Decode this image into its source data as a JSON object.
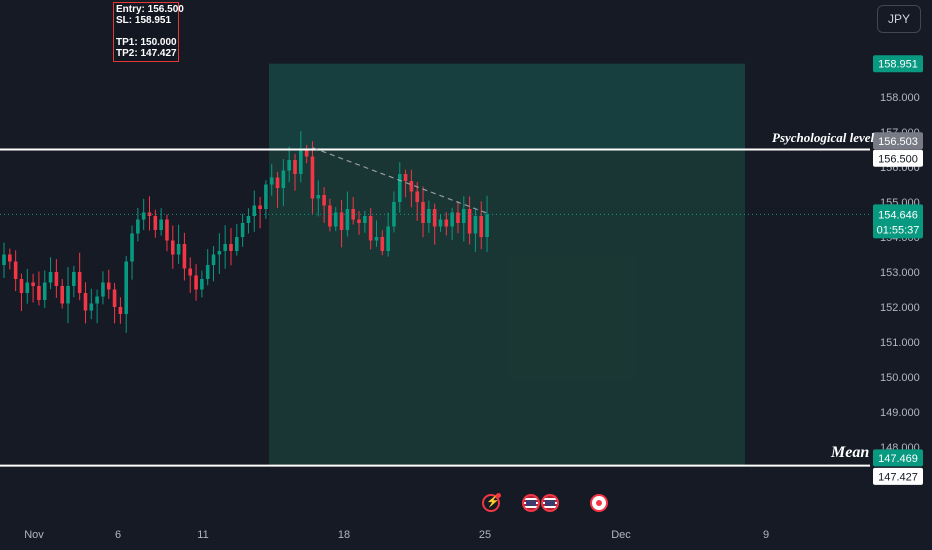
{
  "currency_button": "JPY",
  "note": {
    "entry": "Entry: 156.500",
    "sl": "SL: 158.951",
    "tp1": "TP1: 150.000",
    "tp2": "TP2: 147.427"
  },
  "labels": {
    "psychological": "Psychological level",
    "mean": "Mean"
  },
  "price_badges": {
    "sl": "158.951",
    "alt_high": "156.503",
    "entry": "156.500",
    "current": "154.646",
    "countdown": "01:55:37",
    "alt_low": "147.469",
    "tp2": "147.427"
  },
  "colors": {
    "background": "#161a25",
    "up": "#089981",
    "down": "#f23645",
    "zone": "#26a69a",
    "accent_green": "#089981"
  },
  "chart_data": {
    "type": "candlestick",
    "y_ticks": [
      "158.000",
      "157.000",
      "156.000",
      "155.000",
      "154.000",
      "153.000",
      "152.000",
      "151.000",
      "150.000",
      "149.000",
      "148.000"
    ],
    "x_ticks": [
      "Nov",
      "6",
      "11",
      "18",
      "25",
      "Dec",
      "9"
    ],
    "levels": {
      "psychological_level": 156.5,
      "mean": 147.469,
      "current_price": 154.646,
      "stop_loss": 158.951
    },
    "short_position_zone": {
      "from_x": "Nov 14",
      "to_x": "Dec 7",
      "entry": 156.5,
      "stop": 158.951,
      "target": 147.469
    },
    "trendline": {
      "from": [
        "Nov 15",
        156.55
      ],
      "to": [
        "Nov 25",
        154.65
      ]
    },
    "closes": [
      153.5,
      153.3,
      152.8,
      152.4,
      152.7,
      152.6,
      152.2,
      152.7,
      153.0,
      152.6,
      152.1,
      152.6,
      153.0,
      152.4,
      151.9,
      152.1,
      152.3,
      152.7,
      152.5,
      152.0,
      151.8,
      153.3,
      154.1,
      154.5,
      154.7,
      154.6,
      154.2,
      154.5,
      153.9,
      153.5,
      153.8,
      153.1,
      152.9,
      152.5,
      152.8,
      153.2,
      153.5,
      153.6,
      153.8,
      153.6,
      154.0,
      154.4,
      154.6,
      154.9,
      154.8,
      155.5,
      155.7,
      155.4,
      155.9,
      156.2,
      155.8,
      156.5,
      156.3,
      155.1,
      155.2,
      154.9,
      154.3,
      154.7,
      154.2,
      154.8,
      154.5,
      154.4,
      154.6,
      153.9,
      154.0,
      153.6,
      154.3,
      155.0,
      155.8,
      155.6,
      155.3,
      155.0,
      154.4,
      154.8,
      154.3,
      154.5,
      154.3,
      154.7,
      154.4,
      154.8,
      154.1,
      154.6,
      154.0,
      154.65
    ]
  }
}
